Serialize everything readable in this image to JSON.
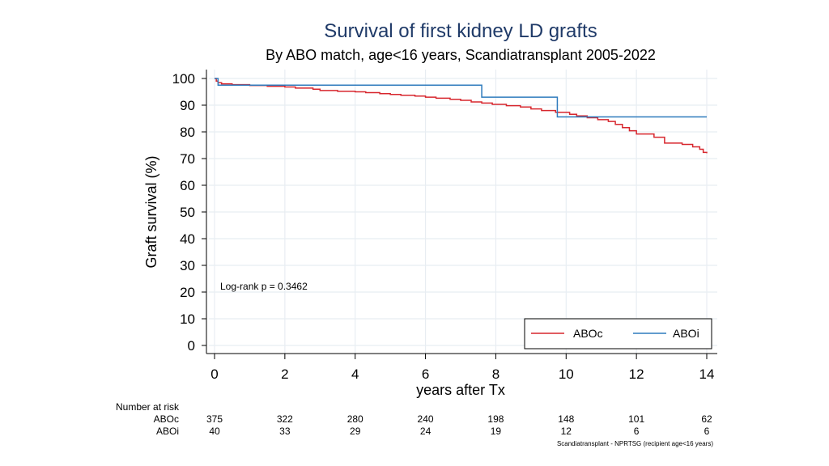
{
  "chart_data": {
    "type": "line",
    "title": "Survival of first kidney LD grafts",
    "subtitle": "By ABO match, age<16 years, Scandiatransplant 2005-2022",
    "xlabel": "years after Tx",
    "ylabel": "Graft survival (%)",
    "xlim": [
      0,
      14
    ],
    "ylim": [
      0,
      100
    ],
    "xticks": [
      0,
      2,
      4,
      6,
      8,
      10,
      12,
      14
    ],
    "yticks": [
      0,
      10,
      20,
      30,
      40,
      50,
      60,
      70,
      80,
      90,
      100
    ],
    "grid": true,
    "legend_position": "bottom-right",
    "annotation": "Log-rank p = 0.3462",
    "series": [
      {
        "name": "ABOc",
        "color": "#d7262d",
        "x": [
          0,
          0.05,
          0.1,
          0.2,
          0.5,
          1.0,
          1.5,
          2.0,
          2.3,
          2.8,
          3.0,
          3.5,
          4.0,
          4.3,
          4.7,
          5.0,
          5.3,
          5.7,
          6.0,
          6.3,
          6.7,
          7.0,
          7.3,
          7.6,
          7.9,
          8.3,
          8.7,
          9.0,
          9.3,
          9.7,
          10.1,
          10.3,
          10.6,
          10.9,
          11.2,
          11.4,
          11.6,
          11.8,
          12.0,
          12.5,
          12.8,
          13.3,
          13.6,
          13.8,
          13.9,
          14.0
        ],
        "y": [
          100,
          99,
          98.4,
          98.0,
          97.7,
          97.4,
          97.1,
          96.8,
          96.4,
          96.0,
          95.5,
          95.2,
          95.0,
          94.7,
          94.3,
          94.0,
          93.7,
          93.4,
          93.0,
          92.6,
          92.2,
          91.8,
          91.2,
          90.8,
          90.3,
          89.8,
          89.3,
          88.6,
          88.0,
          87.3,
          86.6,
          86.0,
          85.3,
          84.6,
          83.9,
          82.8,
          81.6,
          80.4,
          79.2,
          78.0,
          75.8,
          75.3,
          74.4,
          73.5,
          72.3,
          72.0
        ]
      },
      {
        "name": "ABOi",
        "color": "#2f7bbd",
        "x": [
          0,
          0.1,
          7.6,
          7.6,
          9.75,
          9.75,
          14.0
        ],
        "y": [
          100,
          97.5,
          97.5,
          93.0,
          93.0,
          85.6,
          85.6
        ]
      }
    ],
    "risk_table": {
      "header": "Number at risk",
      "times": [
        0,
        2,
        4,
        6,
        8,
        10,
        12,
        14
      ],
      "rows": [
        {
          "label": "ABOc",
          "values": [
            "375",
            "322",
            "280",
            "240",
            "198",
            "148",
            "101",
            "62"
          ]
        },
        {
          "label": "ABOi",
          "values": [
            "40",
            "33",
            "29",
            "24",
            "19",
            "12",
            "6",
            "6"
          ]
        }
      ]
    },
    "footnote": "Scandiatransplant - NPRTSG (recipient age<16 years)"
  }
}
